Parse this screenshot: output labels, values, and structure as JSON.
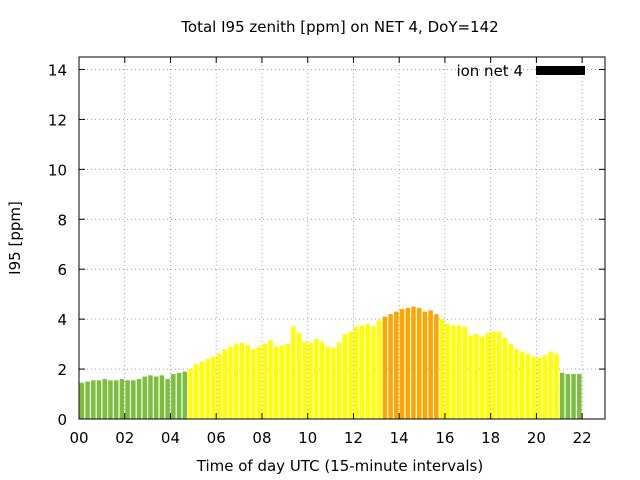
{
  "chart_data": {
    "type": "bar",
    "title": "Total I95 zenith [ppm] on NET 4, DoY=142",
    "xlabel": "Time of day UTC (15-minute intervals)",
    "ylabel": "I95 [ppm]",
    "xlim": [
      0,
      23
    ],
    "ylim": [
      0,
      14.5
    ],
    "xticks": [
      "00",
      "02",
      "04",
      "06",
      "08",
      "10",
      "12",
      "14",
      "16",
      "18",
      "20",
      "22"
    ],
    "yticks": [
      "0",
      "2",
      "4",
      "6",
      "8",
      "10",
      "12",
      "14"
    ],
    "grid": true,
    "legend": {
      "label": "ion net 4",
      "position": "top-right",
      "color": "#000000"
    },
    "level_colors": {
      "low": "#7cbf3f",
      "moderate": "#ffff00",
      "elevated": "#ffa500"
    },
    "interval_hours": 0.25,
    "values": [
      1.45,
      1.5,
      1.55,
      1.55,
      1.6,
      1.55,
      1.55,
      1.6,
      1.55,
      1.55,
      1.6,
      1.7,
      1.75,
      1.7,
      1.75,
      1.6,
      1.8,
      1.85,
      1.9,
      2.0,
      2.2,
      2.3,
      2.4,
      2.5,
      2.6,
      2.8,
      2.9,
      3.0,
      3.05,
      2.95,
      2.8,
      2.9,
      3.0,
      3.15,
      2.9,
      2.95,
      3.0,
      3.7,
      3.45,
      3.1,
      3.05,
      3.2,
      3.1,
      2.9,
      2.85,
      3.05,
      3.4,
      3.5,
      3.7,
      3.75,
      3.8,
      3.7,
      3.95,
      4.1,
      4.2,
      4.3,
      4.4,
      4.45,
      4.5,
      4.45,
      4.3,
      4.35,
      4.2,
      4.0,
      3.8,
      3.75,
      3.75,
      3.7,
      3.35,
      3.4,
      3.3,
      3.45,
      3.5,
      3.5,
      3.25,
      3.0,
      2.8,
      2.7,
      2.6,
      2.5,
      2.45,
      2.55,
      2.7,
      2.6,
      1.85,
      1.8,
      1.8,
      1.8
    ],
    "levels": [
      "low",
      "low",
      "low",
      "low",
      "low",
      "low",
      "low",
      "low",
      "low",
      "low",
      "low",
      "low",
      "low",
      "low",
      "low",
      "low",
      "low",
      "low",
      "low",
      "moderate",
      "moderate",
      "moderate",
      "moderate",
      "moderate",
      "moderate",
      "moderate",
      "moderate",
      "moderate",
      "moderate",
      "moderate",
      "moderate",
      "moderate",
      "moderate",
      "moderate",
      "moderate",
      "moderate",
      "moderate",
      "moderate",
      "moderate",
      "moderate",
      "moderate",
      "moderate",
      "moderate",
      "moderate",
      "moderate",
      "moderate",
      "moderate",
      "moderate",
      "moderate",
      "moderate",
      "moderate",
      "moderate",
      "moderate",
      "elevated",
      "elevated",
      "elevated",
      "elevated",
      "elevated",
      "elevated",
      "elevated",
      "elevated",
      "elevated",
      "elevated",
      "moderate",
      "moderate",
      "moderate",
      "moderate",
      "moderate",
      "moderate",
      "moderate",
      "moderate",
      "moderate",
      "moderate",
      "moderate",
      "moderate",
      "moderate",
      "moderate",
      "moderate",
      "moderate",
      "moderate",
      "moderate",
      "moderate",
      "moderate",
      "moderate",
      "low",
      "low",
      "low",
      "low"
    ]
  }
}
